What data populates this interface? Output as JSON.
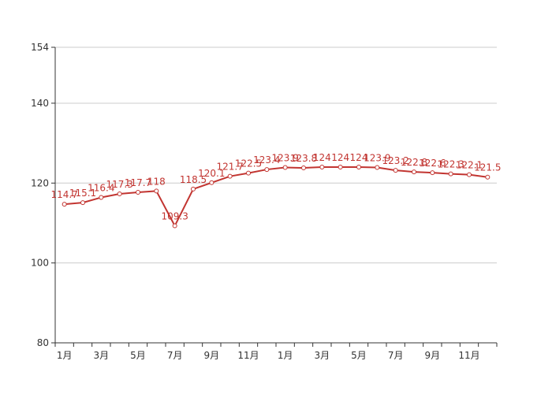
{
  "chart_data": {
    "type": "line",
    "title": "",
    "xlabel": "",
    "ylabel": "",
    "ylim": [
      80,
      154
    ],
    "yticks": [
      80,
      100,
      120,
      140,
      154
    ],
    "grid": true,
    "legend": "none",
    "x_tick_labels": [
      "1月",
      "3月",
      "5月",
      "7月",
      "9月",
      "11月",
      "1月",
      "3月",
      "5月",
      "7月",
      "9月",
      "11月"
    ],
    "x": [
      1,
      2,
      3,
      4,
      5,
      6,
      7,
      8,
      9,
      10,
      11,
      12,
      13,
      14,
      15,
      16,
      17,
      18,
      19,
      20,
      21,
      22,
      23,
      24
    ],
    "series": [
      {
        "color": "#c23531",
        "values": [
          114.7,
          115.1,
          116.4,
          117.3,
          117.7,
          118,
          109.3,
          118.5,
          120.1,
          121.7,
          122.5,
          123.4,
          123.9,
          123.8,
          124,
          124,
          124,
          123.9,
          123.2,
          122.8,
          122.6,
          122.3,
          122.1,
          121.5
        ]
      }
    ]
  }
}
